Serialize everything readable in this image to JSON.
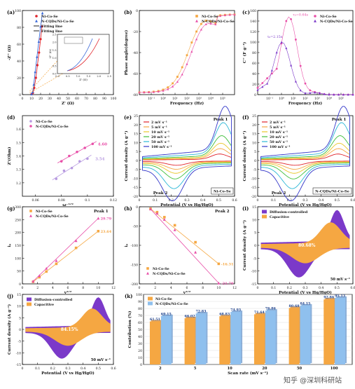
{
  "chart_data": [
    {
      "id": "a",
      "type": "scatter",
      "panel_label": "(a)",
      "xlabel": "Z' (Ω)",
      "ylabel": "-Z'' (Ω)",
      "xlim": [
        0,
        100
      ],
      "ylim": [
        0,
        100
      ],
      "xticks": [
        0,
        10,
        20,
        30,
        40,
        50,
        60,
        70,
        80,
        90,
        100
      ],
      "yticks": [
        0,
        20,
        40,
        60,
        80,
        100
      ],
      "legend": [
        "Ni-Co-Se",
        "N-CQDs/Ni-Co-Se",
        "Fitting line",
        "Fitting line"
      ],
      "series": [
        {
          "name": "Ni-Co-Se",
          "color": "#e0232a",
          "marker": "circle",
          "x": [
            10.0,
            11.5,
            13.0,
            14.8,
            16.5,
            18.3,
            20.0,
            21.5
          ],
          "y": [
            0.5,
            2.0,
            8.0,
            20.0,
            35.0,
            50.0,
            66.0,
            81.0
          ]
        },
        {
          "name": "N-CQDs/Ni-Co-Se",
          "color": "#3a68d8",
          "marker": "triangle",
          "x": [
            10.0,
            11.2,
            12.5,
            14.0,
            16.0,
            18.0,
            20.0,
            22.0
          ],
          "y": [
            0.5,
            3.0,
            12.0,
            27.0,
            45.0,
            63.0,
            81.0,
            97.0
          ]
        }
      ],
      "inset": {
        "xlabel": "Z' (Ω)",
        "ylabel": "-Z'' (Ω)",
        "xlim": [
          0,
          2.5
        ],
        "ylim": [
          0,
          2.5
        ],
        "xticks": [
          0.0,
          0.5,
          1.0,
          1.5,
          2.0,
          2.5
        ],
        "yticks": [
          0.0,
          0.5,
          1.0,
          1.5,
          2.0,
          2.5
        ]
      }
    },
    {
      "id": "b",
      "type": "scatter",
      "panel_label": "(b)",
      "xlabel": "Frequency (Hz)",
      "ylabel": "Phase angle(degree)",
      "xscale": "log",
      "xlim": [
        0.01,
        100000
      ],
      "ylim": [
        -80,
        0
      ],
      "xticks": [
        "10⁻¹",
        "10⁰",
        "10¹",
        "10²",
        "10³",
        "10⁴",
        "10⁵"
      ],
      "yticks": [
        0,
        -20,
        -40,
        -60,
        -80
      ],
      "legend": [
        "Ni-Co-Se",
        "N-CQDs/Ni-Co-Se"
      ],
      "series": [
        {
          "name": "Ni-Co-Se",
          "color": "#f5a742",
          "marker": "square"
        },
        {
          "name": "N-CQDs/Ni-Co-Se",
          "color": "#e84fa8",
          "marker": "triangle"
        }
      ]
    },
    {
      "id": "c",
      "type": "scatter",
      "panel_label": "(c)",
      "xlabel": "Frequency (Hz)",
      "ylabel": "C'' (F g⁻¹)",
      "xscale": "log",
      "xlim": [
        0.01,
        100000
      ],
      "ylim": [
        0,
        160
      ],
      "xticks": [
        "10⁻¹",
        "10⁰",
        "10¹",
        "10²",
        "10³",
        "10⁴",
        "10⁵"
      ],
      "yticks": [
        0,
        20,
        40,
        60,
        80,
        100,
        120,
        140,
        160
      ],
      "legend": [
        "Ni-Co-Se",
        "N-CQDs/Ni-Co-Se"
      ],
      "annotations": [
        "τ₀=0.64s",
        "τ₀=2.15s"
      ],
      "series": [
        {
          "name": "Ni-Co-Se",
          "color": "#e84fa8",
          "marker": "circle"
        },
        {
          "name": "N-CQDs/Ni-Co-Se",
          "color": "#7b39c9",
          "marker": "triangle"
        }
      ]
    },
    {
      "id": "d",
      "type": "scatter",
      "panel_label": "(d)",
      "xlabel": "ω⁻¹ᐟ²",
      "ylabel": "Z'(Ohm)",
      "xlim": [
        0.05,
        0.12
      ],
      "ylim": [
        1.1,
        1.7
      ],
      "xticks": [
        0.06,
        0.08,
        0.1,
        0.12
      ],
      "yticks": [
        1.2,
        1.3,
        1.4,
        1.5,
        1.6
      ],
      "legend": [
        "Ni-Co-Se",
        "N-CQDs/Ni-Co-Se"
      ],
      "annotations": [
        "4.60",
        "3.54"
      ],
      "series": [
        {
          "name": "Ni-Co-Se",
          "color": "#b79ae0",
          "marker": "circle",
          "x": [
            0.076,
            0.082,
            0.088,
            0.094,
            0.1
          ],
          "y": [
            1.23,
            1.29,
            1.31,
            1.36,
            1.38
          ]
        },
        {
          "name": "N-CQDs/Ni-Co-Se",
          "color": "#e84fa8",
          "marker": "circle",
          "x": [
            0.08,
            0.086,
            0.092,
            0.098,
            0.104
          ],
          "y": [
            1.36,
            1.4,
            1.43,
            1.46,
            1.49
          ]
        }
      ]
    },
    {
      "id": "e",
      "type": "line",
      "panel_label": "(e)",
      "xlabel": "Potential (V vs Hg/HgO)",
      "ylabel": "Current density (A g⁻¹)",
      "xlim": [
        0.0,
        0.6
      ],
      "ylim": [
        -20,
        25
      ],
      "xticks": [
        0.0,
        0.1,
        0.2,
        0.3,
        0.4,
        0.5,
        0.6
      ],
      "yticks": [
        -20,
        -15,
        -10,
        -5,
        0,
        5,
        10,
        15,
        20,
        25
      ],
      "legend": [
        "2 mV s⁻¹",
        "5 mV s⁻¹",
        "10 mV s⁻¹",
        "20 mV s⁻¹",
        "50 mV s⁻¹",
        "100 mV s⁻¹"
      ],
      "annotations": [
        "Peak 1",
        "Peak 2",
        "Ni-Co-Se"
      ],
      "series": [
        {
          "name": "2 mV s⁻¹",
          "color": "#e0232a",
          "amplitude": 0.12
        },
        {
          "name": "5 mV s⁻¹",
          "color": "#f5a742",
          "amplitude": 0.22
        },
        {
          "name": "10 mV s⁻¹",
          "color": "#e8c72a",
          "amplitude": 0.32
        },
        {
          "name": "20 mV s⁻¹",
          "color": "#3fbf3a",
          "amplitude": 0.46
        },
        {
          "name": "50 mV s⁻¹",
          "color": "#2ab7d6",
          "amplitude": 0.7
        },
        {
          "name": "100 mV s⁻¹",
          "color": "#3336c9",
          "amplitude": 1.0
        }
      ]
    },
    {
      "id": "f",
      "type": "line",
      "panel_label": "(f)",
      "xlabel": "Potential (V vs Hg/HgO)",
      "ylabel": "Current density (A g⁻¹)",
      "xlim": [
        0.0,
        0.6
      ],
      "ylim": [
        -20,
        25
      ],
      "xticks": [
        0.0,
        0.1,
        0.2,
        0.3,
        0.4,
        0.5,
        0.6
      ],
      "yticks": [
        -20,
        -15,
        -10,
        -5,
        0,
        5,
        10,
        15,
        20,
        25
      ],
      "legend": [
        "2 mV s⁻¹",
        "5 mV s⁻¹",
        "10 mV s⁻¹",
        "20 mV s⁻¹",
        "50 mV s⁻¹",
        "100 mV s⁻¹"
      ],
      "annotations": [
        "Peak 1",
        "Peak 2",
        "N-CQDs/Ni-Co-Se"
      ],
      "series": [
        {
          "name": "2 mV s⁻¹",
          "color": "#e0232a",
          "amplitude": 0.12
        },
        {
          "name": "5 mV s⁻¹",
          "color": "#f5a742",
          "amplitude": 0.22
        },
        {
          "name": "10 mV s⁻¹",
          "color": "#e8c72a",
          "amplitude": 0.32
        },
        {
          "name": "20 mV s⁻¹",
          "color": "#3fbf3a",
          "amplitude": 0.46
        },
        {
          "name": "50 mV s⁻¹",
          "color": "#2ab7d6",
          "amplitude": 0.7
        },
        {
          "name": "100 mV s⁻¹",
          "color": "#3336c9",
          "amplitude": 1.0
        }
      ]
    },
    {
      "id": "g",
      "type": "scatter",
      "panel_label": "(g)",
      "xlabel": "v¹ᐟ²",
      "ylabel": "iₚ",
      "xlim": [
        0,
        12
      ],
      "ylim": [
        0,
        300
      ],
      "xticks": [
        0,
        2,
        4,
        6,
        8,
        10,
        12
      ],
      "yticks": [
        0,
        50,
        100,
        150,
        200,
        250,
        300
      ],
      "legend": [
        "Ni-Co-Se",
        "N-CQDs/Ni-Co-Se"
      ],
      "annotations": [
        "Peak 1",
        "29.79",
        "23.64"
      ],
      "series": [
        {
          "name": "Ni-Co-Se",
          "color": "#f5a742",
          "marker": "square",
          "x": [
            1.41,
            2.24,
            3.16,
            4.47,
            7.07,
            10.0
          ],
          "y": [
            8,
            26,
            48,
            78,
            140,
            205
          ]
        },
        {
          "name": "N-CQDs/Ni-Co-Se",
          "color": "#e84fa8",
          "marker": "triangle",
          "x": [
            1.41,
            2.24,
            3.16,
            4.47,
            7.07,
            10.0
          ],
          "y": [
            10,
            32,
            60,
            90,
            168,
            255
          ]
        }
      ]
    },
    {
      "id": "h",
      "type": "scatter",
      "panel_label": "(h)",
      "xlabel": "v¹ᐟ²",
      "ylabel": "iₚ",
      "xlim": [
        0,
        12
      ],
      "ylim": [
        -200,
        0
      ],
      "xticks": [
        0,
        2,
        4,
        6,
        8,
        10,
        12
      ],
      "yticks": [
        0,
        -50,
        -100,
        -150,
        -200
      ],
      "legend": [
        "Ni-Co-Se",
        "N-CQDs/Ni-Co-Se"
      ],
      "annotations": [
        "Peak 2",
        "-16.31",
        "-21.79"
      ],
      "series": [
        {
          "name": "Ni-Co-Se",
          "color": "#f5a742",
          "marker": "square",
          "x": [
            1.41,
            2.24,
            3.16,
            4.47,
            7.07,
            10.0
          ],
          "y": [
            -5,
            -14,
            -27,
            -48,
            -92,
            -148
          ]
        },
        {
          "name": "N-CQDs/Ni-Co-Se",
          "color": "#e84fa8",
          "marker": "triangle",
          "x": [
            1.41,
            2.24,
            3.16,
            4.47,
            7.07,
            10.0
          ],
          "y": [
            -6,
            -17,
            -33,
            -60,
            -118,
            -198
          ]
        }
      ]
    },
    {
      "id": "i",
      "type": "area",
      "panel_label": "(i)",
      "xlabel": "Potential (V vs Hg/HgO)",
      "ylabel": "Current density (A g⁻¹)",
      "xlim": [
        0.0,
        0.6
      ],
      "ylim": [
        -15,
        15
      ],
      "xticks": [
        0.0,
        0.1,
        0.2,
        0.3,
        0.4,
        0.5,
        0.6
      ],
      "yticks": [
        -15,
        -10,
        -5,
        0,
        5,
        10,
        15
      ],
      "legend": [
        "Diffusion-controlled",
        "Capacitive"
      ],
      "annotations": [
        "80.68%",
        "50 mV s⁻¹"
      ],
      "series": [
        {
          "name": "Diffusion-controlled",
          "color": "#7b39c9"
        },
        {
          "name": "Capacitive",
          "color": "#f5a742"
        }
      ]
    },
    {
      "id": "j",
      "type": "area",
      "panel_label": "(j)",
      "xlabel": "Potential (V vs Hg/HgO)",
      "ylabel": "Current density (A g⁻¹)",
      "xlim": [
        0.0,
        0.6
      ],
      "ylim": [
        -15,
        15
      ],
      "xticks": [
        0.0,
        0.1,
        0.2,
        0.3,
        0.4,
        0.5,
        0.6
      ],
      "yticks": [
        -15,
        -10,
        -5,
        0,
        5,
        10,
        15
      ],
      "legend": [
        "Diffusion-controlled",
        "Capacitive"
      ],
      "annotations": [
        "84.15%",
        "50 mV s⁻¹"
      ],
      "series": [
        {
          "name": "Diffusion-controlled",
          "color": "#7b39c9"
        },
        {
          "name": "Capacitive",
          "color": "#f5a742"
        }
      ]
    },
    {
      "id": "k",
      "type": "bar",
      "panel_label": "(k)",
      "xlabel": "Scan rate (mV s⁻¹)",
      "ylabel": "Contribution (%)",
      "ylim": [
        0,
        100
      ],
      "yticks": [
        0,
        10,
        20,
        30,
        40,
        50,
        60,
        70,
        80,
        90,
        100
      ],
      "categories": [
        "2",
        "5",
        "10",
        "20",
        "50",
        "100"
      ],
      "legend": [
        "Ni-Co-Se",
        "N-CQDs/Ni-Co-Se"
      ],
      "series": [
        {
          "name": "Ni-Co-Se",
          "color": "#f5a742",
          "values": [
            61.51,
            66.02,
            68.83,
            71.64,
            80.68,
            92.86
          ]
        },
        {
          "name": "N-CQDs/Ni-Co-Se",
          "color": "#8fc0ee",
          "values": [
            69.15,
            72.83,
            74.93,
            76.86,
            84.15,
            95.13
          ]
        }
      ]
    }
  ],
  "watermark": "知乎 @深圳科研站"
}
